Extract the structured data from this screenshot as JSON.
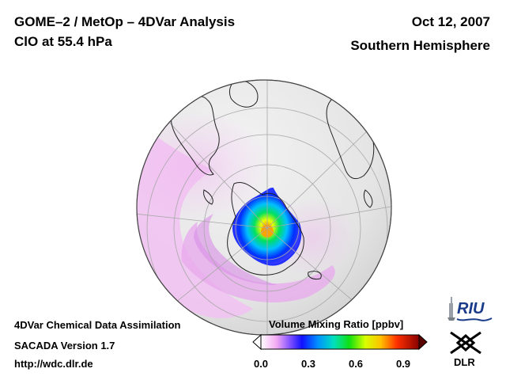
{
  "header": {
    "title": "GOME–2 / MetOp – 4DVar Analysis",
    "subtitle": "ClO at 55.4 hPa",
    "date": "Oct 12, 2007",
    "region": "Southern Hemisphere"
  },
  "footer": {
    "line1": "4DVar Chemical Data Assimilation",
    "line2": "SACADA Version 1.7",
    "line3": "http://wdc.dlr.de"
  },
  "colorbar": {
    "label": "Volume Mixing Ratio [ppbv]",
    "ticks": [
      "0.0",
      "0.3",
      "0.6",
      "0.9"
    ],
    "tick_values": [
      0.0,
      0.3,
      0.6,
      0.9
    ],
    "range": [
      0.0,
      1.0
    ],
    "colors": [
      "#ffffff",
      "#ff99ff",
      "#6633ff",
      "#0000ff",
      "#00ccff",
      "#00ff66",
      "#ccff00",
      "#ffcc00",
      "#ff3300",
      "#990000"
    ]
  },
  "map": {
    "projection": "orthographic",
    "hemisphere": "southern",
    "graticule": true,
    "land_color": "#e8e8e8",
    "low_value_tint": "#f4c8f4",
    "max_value_ppbv": 0.7
  },
  "logos": {
    "riu": "RIU",
    "dlr": "DLR"
  }
}
